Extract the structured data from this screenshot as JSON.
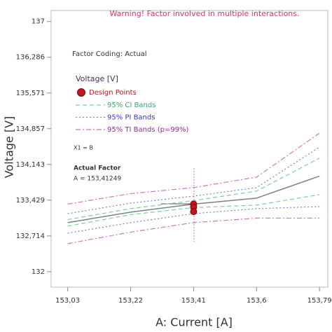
{
  "chart_data": {
    "type": "line",
    "warning": "Warning! Factor involved in multiple interactions.",
    "factor_coding": "Factor Coding: Actual",
    "legend_title": "Voltage [V]",
    "note": "X1 = B",
    "actual_factor_title": "Actual Factor",
    "actual_factor_value": "A = 153,41249",
    "x_label": "A: Current [A]",
    "y_label": "Voltage [V]",
    "xlim": [
      152.98,
      153.815
    ],
    "ylim": [
      131.69,
      137.22
    ],
    "xticks": [
      {
        "value": 153.03,
        "label": "153,03"
      },
      {
        "value": 153.22,
        "label": "153,22"
      },
      {
        "value": 153.41,
        "label": "153,41"
      },
      {
        "value": 153.6,
        "label": "153,6"
      },
      {
        "value": 153.79,
        "label": "153,79"
      }
    ],
    "yticks": [
      132,
      {
        "value": 132.714,
        "label": "132,714"
      },
      {
        "value": 133.429,
        "label": "133,429"
      },
      {
        "value": 134.143,
        "label": "134,143"
      },
      {
        "value": 134.857,
        "label": "134,857"
      },
      {
        "value": 135.571,
        "label": "135,571"
      },
      {
        "value": 136.286,
        "label": "136,286"
      },
      137
    ],
    "x": [
      153.03,
      153.22,
      153.41,
      153.6,
      153.79
    ],
    "fit": {
      "color": "#808080",
      "values": [
        132.98,
        133.19,
        133.35,
        133.47,
        133.91
      ]
    },
    "points": {
      "name": "Design Points",
      "color": "#c0171c",
      "x": [
        153.41,
        153.41,
        153.41
      ],
      "values": [
        133.35,
        133.29,
        133.2
      ]
    },
    "bands": [
      {
        "name": "95% CI Bands",
        "color": "#7ccf9c",
        "label_color": "#3aa86a",
        "dash": "6,4",
        "upper": [
          133.04,
          133.26,
          133.42,
          133.61,
          134.27
        ],
        "lower": [
          132.91,
          133.14,
          133.28,
          133.33,
          133.54
        ]
      },
      {
        "name": "95% PI Bands",
        "color": "#8a78d8",
        "label_color": "#3a3ac8",
        "dash": "2,3",
        "upper": [
          133.16,
          133.37,
          133.51,
          133.68,
          134.49
        ],
        "lower": [
          132.77,
          132.98,
          133.16,
          133.26,
          133.3
        ]
      },
      {
        "name": "95% TI Bands (p=99%)",
        "color": "#d074c4",
        "label_color": "#9a2a9a",
        "dash": "7,3,2,3",
        "upper": [
          133.35,
          133.56,
          133.68,
          133.89,
          134.77
        ],
        "lower": [
          132.56,
          132.79,
          132.98,
          133.07,
          133.07
        ]
      }
    ]
  }
}
